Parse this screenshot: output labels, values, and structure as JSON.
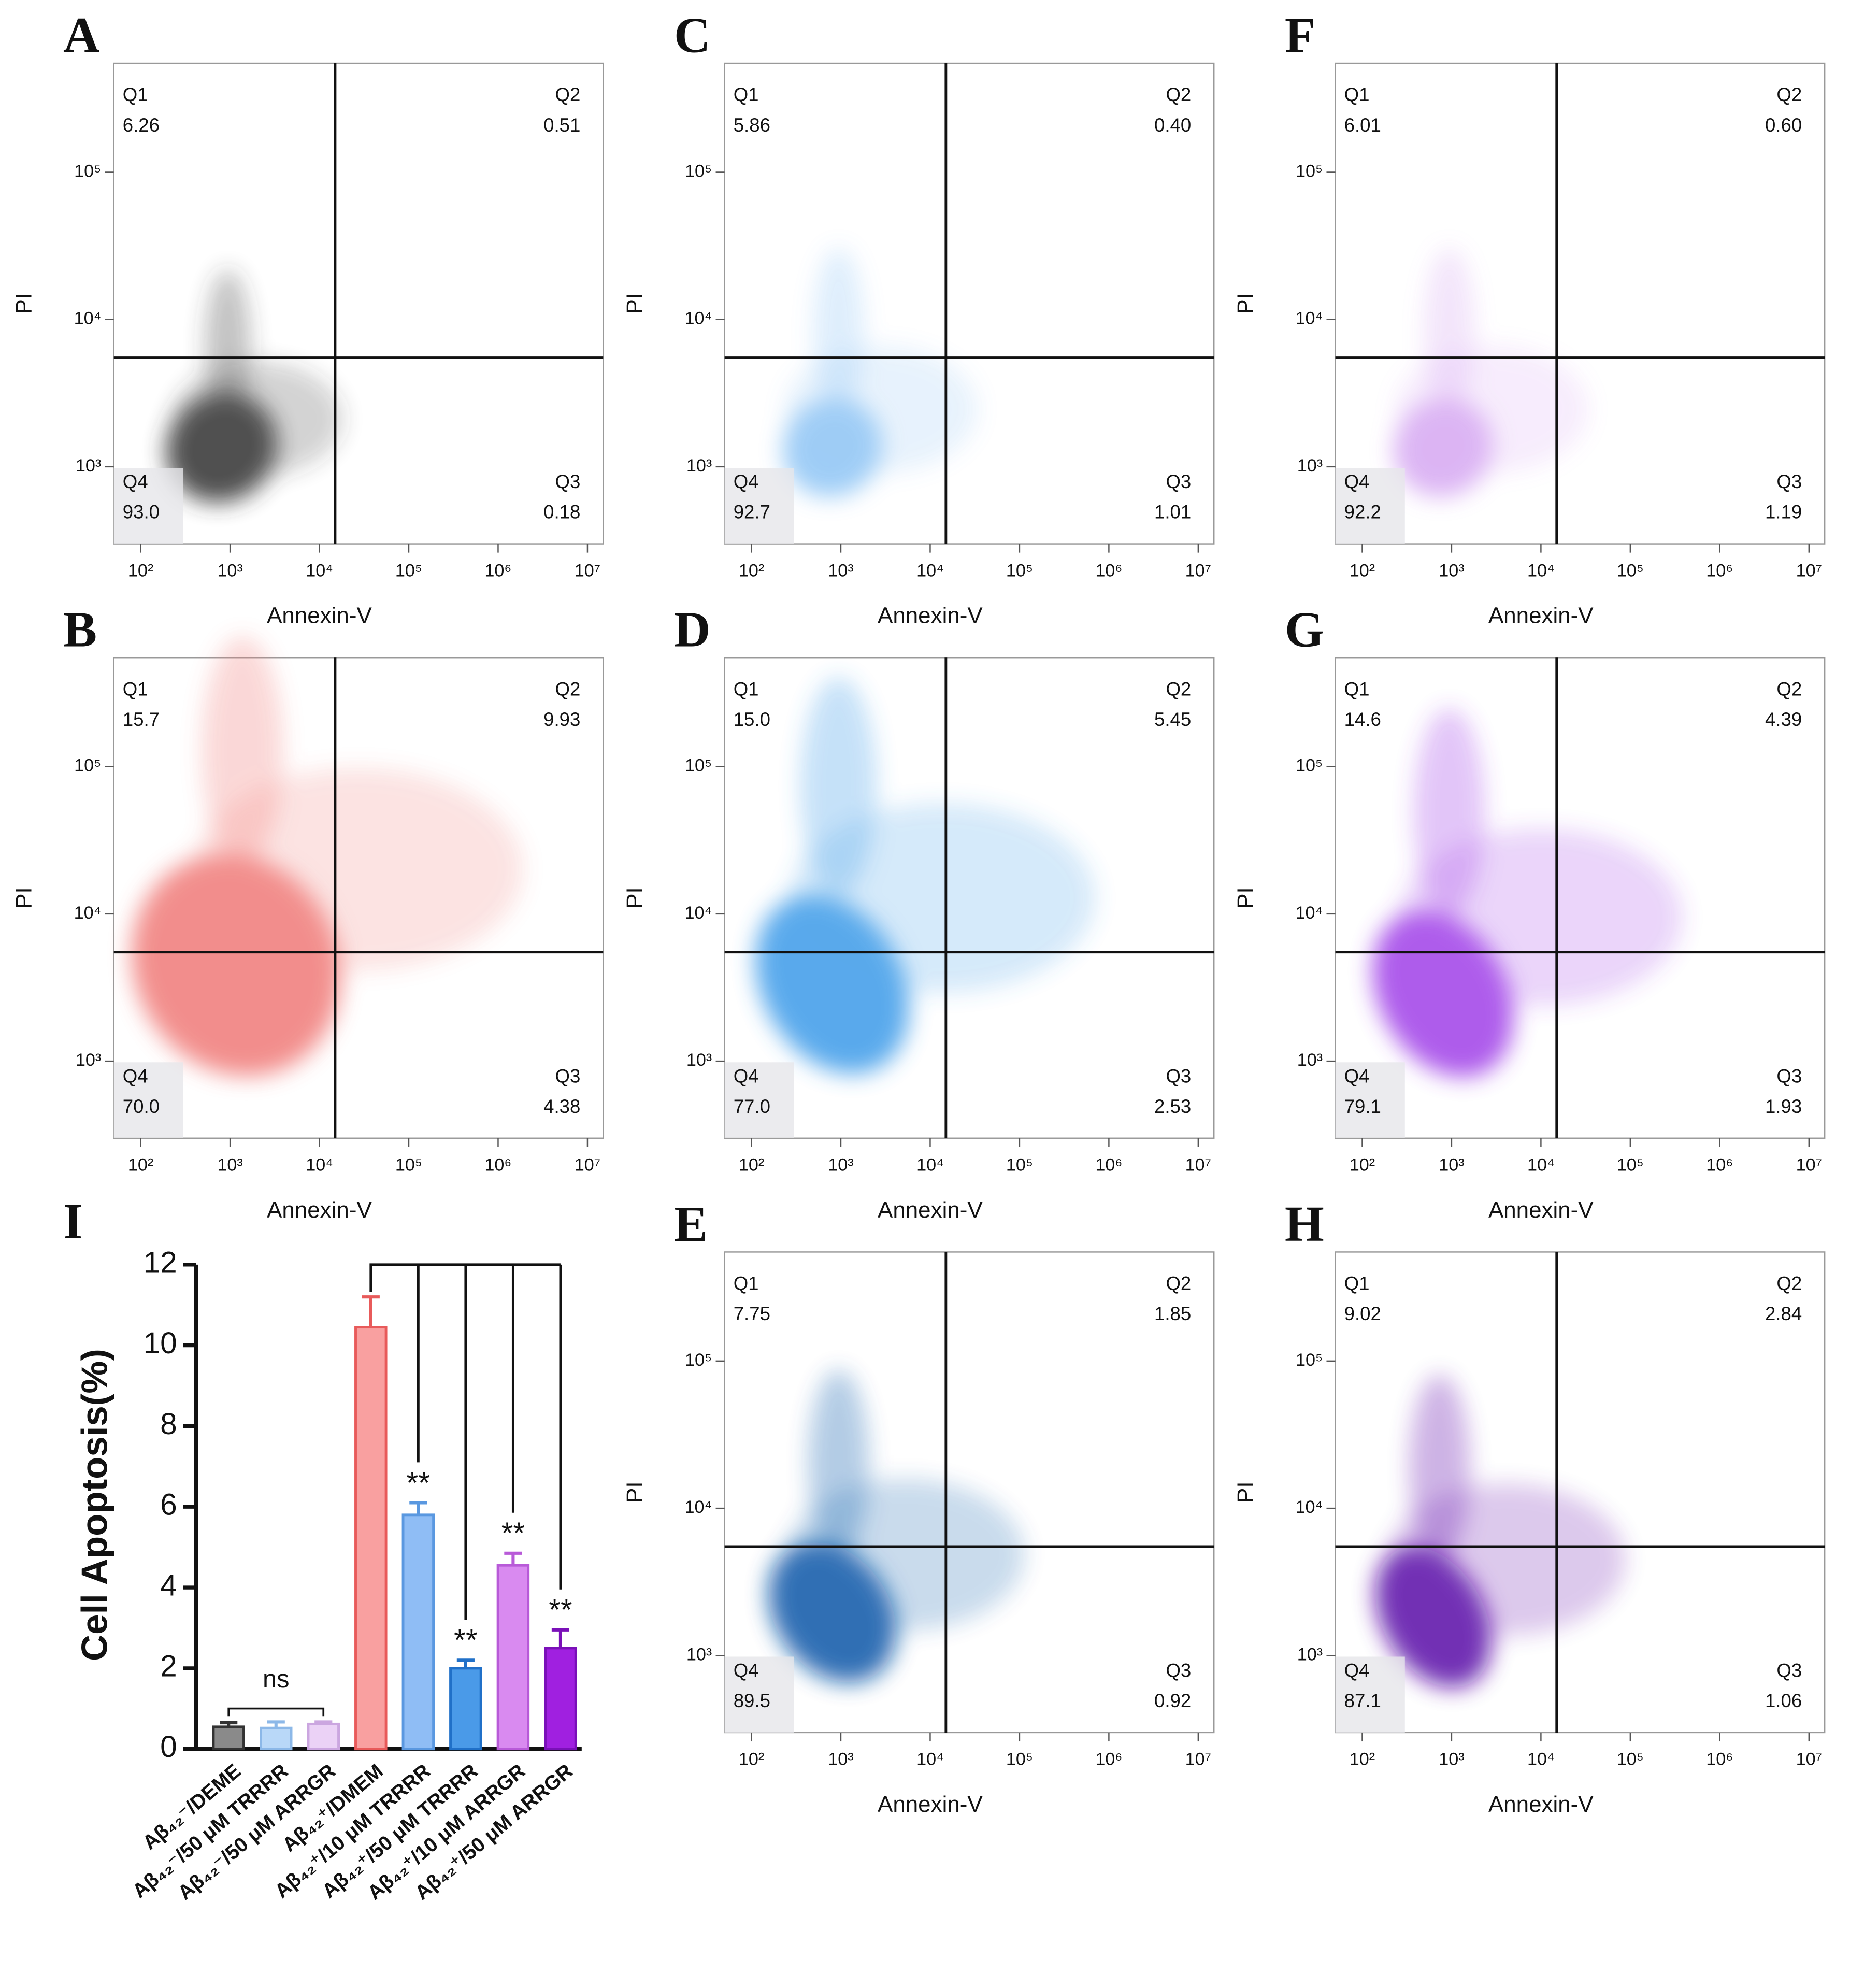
{
  "chart_data": [
    {
      "type": "scatter",
      "panel": "A",
      "x_label": "Annexin-V",
      "y_label": "PI",
      "color": "#333333",
      "xlim": [
        50,
        15000000
      ],
      "ylim": [
        300,
        550000
      ],
      "xticks": [
        {
          "value": 100,
          "label": "10²"
        },
        {
          "value": 1000,
          "label": "10³"
        },
        {
          "value": 10000,
          "label": "10⁴"
        },
        {
          "value": 100000,
          "label": "10⁵"
        },
        {
          "value": 1000000,
          "label": "10⁶"
        },
        {
          "value": 10000000,
          "label": "10⁷"
        }
      ],
      "yticks": [
        {
          "value": 1000,
          "label": "10³"
        },
        {
          "value": 10000,
          "label": "10⁴"
        },
        {
          "value": 100000,
          "label": "10⁵"
        }
      ],
      "log_scale": true,
      "quadrant_gate": {
        "x": 15000,
        "y": 5500
      },
      "quadrants": [
        {
          "name": "Q1",
          "value": 6.26
        },
        {
          "name": "Q2",
          "value": 0.51
        },
        {
          "name": "Q3",
          "value": 0.18
        },
        {
          "name": "Q4",
          "value": 93,
          "label": "93.0"
        }
      ]
    },
    {
      "type": "scatter",
      "panel": "B",
      "x_label": "Annexin-V",
      "y_label": "PI",
      "color": "#f07a78",
      "xlim": [
        50,
        15000000
      ],
      "ylim": [
        300,
        550000
      ],
      "xticks": [
        {
          "value": 100,
          "label": "10²"
        },
        {
          "value": 1000,
          "label": "10³"
        },
        {
          "value": 10000,
          "label": "10⁴"
        },
        {
          "value": 100000,
          "label": "10⁵"
        },
        {
          "value": 1000000,
          "label": "10⁶"
        },
        {
          "value": 10000000,
          "label": "10⁷"
        }
      ],
      "yticks": [
        {
          "value": 1000,
          "label": "10³"
        },
        {
          "value": 10000,
          "label": "10⁴"
        },
        {
          "value": 100000,
          "label": "10⁵"
        }
      ],
      "log_scale": true,
      "quadrant_gate": {
        "x": 15000,
        "y": 5500
      },
      "quadrants": [
        {
          "name": "Q1",
          "value": 15.7
        },
        {
          "name": "Q2",
          "value": 9.93
        },
        {
          "name": "Q3",
          "value": 4.38
        },
        {
          "name": "Q4",
          "value": 70,
          "label": "70.0"
        }
      ]
    },
    {
      "type": "scatter",
      "panel": "C",
      "x_label": "Annexin-V",
      "y_label": "PI",
      "color": "#8ec5f5",
      "xlim": [
        50,
        15000000
      ],
      "ylim": [
        300,
        550000
      ],
      "xticks": [
        {
          "value": 100,
          "label": "10²"
        },
        {
          "value": 1000,
          "label": "10³"
        },
        {
          "value": 10000,
          "label": "10⁴"
        },
        {
          "value": 100000,
          "label": "10⁵"
        },
        {
          "value": 1000000,
          "label": "10⁶"
        },
        {
          "value": 10000000,
          "label": "10⁷"
        }
      ],
      "yticks": [
        {
          "value": 1000,
          "label": "10³"
        },
        {
          "value": 10000,
          "label": "10⁴"
        },
        {
          "value": 100000,
          "label": "10⁵"
        }
      ],
      "log_scale": true,
      "quadrant_gate": {
        "x": 15000,
        "y": 5500
      },
      "quadrants": [
        {
          "name": "Q1",
          "value": 5.86
        },
        {
          "name": "Q2",
          "value": 0.4,
          "label": "0.40"
        },
        {
          "name": "Q3",
          "value": 1.01
        },
        {
          "name": "Q4",
          "value": 92.7
        }
      ]
    },
    {
      "type": "scatter",
      "panel": "D",
      "x_label": "Annexin-V",
      "y_label": "PI",
      "color": "#3d9be9",
      "xlim": [
        50,
        15000000
      ],
      "ylim": [
        300,
        550000
      ],
      "xticks": [
        {
          "value": 100,
          "label": "10²"
        },
        {
          "value": 1000,
          "label": "10³"
        },
        {
          "value": 10000,
          "label": "10⁴"
        },
        {
          "value": 100000,
          "label": "10⁵"
        },
        {
          "value": 1000000,
          "label": "10⁶"
        },
        {
          "value": 10000000,
          "label": "10⁷"
        }
      ],
      "yticks": [
        {
          "value": 1000,
          "label": "10³"
        },
        {
          "value": 10000,
          "label": "10⁴"
        },
        {
          "value": 100000,
          "label": "10⁵"
        }
      ],
      "log_scale": true,
      "quadrant_gate": {
        "x": 15000,
        "y": 5500
      },
      "quadrants": [
        {
          "name": "Q1",
          "value": 15,
          "label": "15.0"
        },
        {
          "name": "Q2",
          "value": 5.45
        },
        {
          "name": "Q3",
          "value": 2.53
        },
        {
          "name": "Q4",
          "value": 77,
          "label": "77.0"
        }
      ]
    },
    {
      "type": "scatter",
      "panel": "E",
      "x_label": "Annexin-V",
      "y_label": "PI",
      "color": "#0a56a8",
      "xlim": [
        50,
        15000000
      ],
      "ylim": [
        300,
        550000
      ],
      "xticks": [
        {
          "value": 100,
          "label": "10²"
        },
        {
          "value": 1000,
          "label": "10³"
        },
        {
          "value": 10000,
          "label": "10⁴"
        },
        {
          "value": 100000,
          "label": "10⁵"
        },
        {
          "value": 1000000,
          "label": "10⁶"
        },
        {
          "value": 10000000,
          "label": "10⁷"
        }
      ],
      "yticks": [
        {
          "value": 1000,
          "label": "10³"
        },
        {
          "value": 10000,
          "label": "10⁴"
        },
        {
          "value": 100000,
          "label": "10⁵"
        }
      ],
      "log_scale": true,
      "quadrant_gate": {
        "x": 15000,
        "y": 5500
      },
      "quadrants": [
        {
          "name": "Q1",
          "value": 7.75
        },
        {
          "name": "Q2",
          "value": 1.85
        },
        {
          "name": "Q3",
          "value": 0.92
        },
        {
          "name": "Q4",
          "value": 89.5
        }
      ]
    },
    {
      "type": "scatter",
      "panel": "F",
      "x_label": "Annexin-V",
      "y_label": "PI",
      "color": "#d6a8f2",
      "xlim": [
        50,
        15000000
      ],
      "ylim": [
        300,
        550000
      ],
      "xticks": [
        {
          "value": 100,
          "label": "10²"
        },
        {
          "value": 1000,
          "label": "10³"
        },
        {
          "value": 10000,
          "label": "10⁴"
        },
        {
          "value": 100000,
          "label": "10⁵"
        },
        {
          "value": 1000000,
          "label": "10⁶"
        },
        {
          "value": 10000000,
          "label": "10⁷"
        }
      ],
      "yticks": [
        {
          "value": 1000,
          "label": "10³"
        },
        {
          "value": 10000,
          "label": "10⁴"
        },
        {
          "value": 100000,
          "label": "10⁵"
        }
      ],
      "log_scale": true,
      "quadrant_gate": {
        "x": 15000,
        "y": 5500
      },
      "quadrants": [
        {
          "name": "Q1",
          "value": 6.01
        },
        {
          "name": "Q2",
          "value": 0.6,
          "label": "0.60"
        },
        {
          "name": "Q3",
          "value": 1.19
        },
        {
          "name": "Q4",
          "value": 92.2
        }
      ]
    },
    {
      "type": "scatter",
      "panel": "G",
      "x_label": "Annexin-V",
      "y_label": "PI",
      "color": "#a040e8",
      "xlim": [
        50,
        15000000
      ],
      "ylim": [
        300,
        550000
      ],
      "xticks": [
        {
          "value": 100,
          "label": "10²"
        },
        {
          "value": 1000,
          "label": "10³"
        },
        {
          "value": 10000,
          "label": "10⁴"
        },
        {
          "value": 100000,
          "label": "10⁵"
        },
        {
          "value": 1000000,
          "label": "10⁶"
        },
        {
          "value": 10000000,
          "label": "10⁷"
        }
      ],
      "yticks": [
        {
          "value": 1000,
          "label": "10³"
        },
        {
          "value": 10000,
          "label": "10⁴"
        },
        {
          "value": 100000,
          "label": "10⁵"
        }
      ],
      "log_scale": true,
      "quadrant_gate": {
        "x": 15000,
        "y": 5500
      },
      "quadrants": [
        {
          "name": "Q1",
          "value": 14.6
        },
        {
          "name": "Q2",
          "value": 4.39
        },
        {
          "name": "Q3",
          "value": 1.93
        },
        {
          "name": "Q4",
          "value": 79.1
        }
      ]
    },
    {
      "type": "scatter",
      "panel": "H",
      "x_label": "Annexin-V",
      "y_label": "PI",
      "color": "#5a0aa8",
      "xlim": [
        50,
        15000000
      ],
      "ylim": [
        300,
        550000
      ],
      "xticks": [
        {
          "value": 100,
          "label": "10²"
        },
        {
          "value": 1000,
          "label": "10³"
        },
        {
          "value": 10000,
          "label": "10⁴"
        },
        {
          "value": 100000,
          "label": "10⁵"
        },
        {
          "value": 1000000,
          "label": "10⁶"
        },
        {
          "value": 10000000,
          "label": "10⁷"
        }
      ],
      "yticks": [
        {
          "value": 1000,
          "label": "10³"
        },
        {
          "value": 10000,
          "label": "10⁴"
        },
        {
          "value": 100000,
          "label": "10⁵"
        }
      ],
      "log_scale": true,
      "quadrant_gate": {
        "x": 15000,
        "y": 5500
      },
      "quadrants": [
        {
          "name": "Q1",
          "value": 9.02
        },
        {
          "name": "Q2",
          "value": 2.84
        },
        {
          "name": "Q3",
          "value": 1.06
        },
        {
          "name": "Q4",
          "value": 87.1
        }
      ]
    },
    {
      "type": "bar",
      "panel": "I",
      "y_label": "Cell Apoptosis(%)",
      "categories": [
        "Aβ₄₂⁻/DEME",
        "Aβ₄₂⁻/50 μM TRRRR",
        "Aβ₄₂⁻/50 μM ARRGR",
        "Aβ₄₂⁺/DMEM",
        "Aβ₄₂⁺/10 μM TRRRR",
        "Aβ₄₂⁺/50 μM TRRRR",
        "Aβ₄₂⁺/10 μM ARRGR",
        "Aβ₄₂⁺/50 μM ARRGR"
      ],
      "values": [
        0.55,
        0.52,
        0.62,
        10.45,
        5.8,
        2.0,
        4.55,
        2.5
      ],
      "errors": [
        0.1,
        0.15,
        0.05,
        0.75,
        0.3,
        0.2,
        0.3,
        0.45
      ],
      "colors": [
        "#8a8a8a",
        "#b9d8f8",
        "#ebd2f6",
        "#f9a0a0",
        "#8fbdf5",
        "#4a9ae8",
        "#d98af0",
        "#a020e0"
      ],
      "edge_colors": [
        "#333333",
        "#8cb8e8",
        "#cba6e0",
        "#e85a5a",
        "#5a98e0",
        "#2070c8",
        "#b85ad8",
        "#7a10b8"
      ],
      "significance": [
        null,
        null,
        null,
        null,
        "**",
        "**",
        "**",
        "**"
      ],
      "group_label": "ns",
      "ylim": [
        0,
        12
      ],
      "yticks": [
        0,
        2,
        4,
        6,
        8,
        10,
        12
      ]
    }
  ]
}
